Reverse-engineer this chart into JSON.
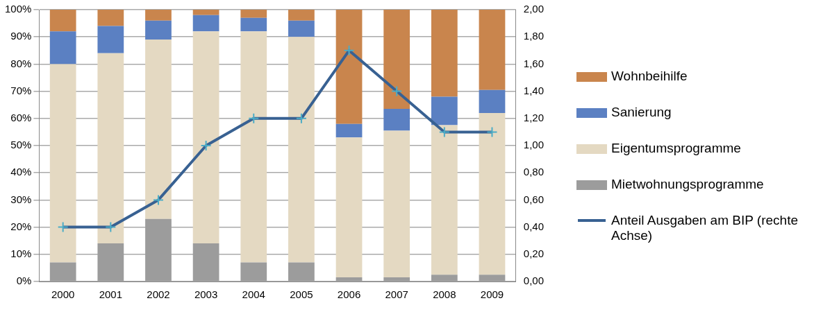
{
  "chart_data": {
    "type": "bar",
    "stacked": true,
    "categories": [
      "2000",
      "2001",
      "2002",
      "2003",
      "2004",
      "2005",
      "2006",
      "2007",
      "2008",
      "2009"
    ],
    "series": [
      {
        "name": "Mietwohnungsprogramme",
        "color": "#9c9c9c",
        "values": [
          7,
          14,
          23,
          14,
          7,
          7,
          1.5,
          1.5,
          2.5,
          2.5
        ]
      },
      {
        "name": "Eigentumsprogramme",
        "color": "#e4d9c2",
        "values": [
          73,
          70,
          66,
          78,
          85,
          83,
          51.5,
          54,
          55,
          59.5
        ]
      },
      {
        "name": "Sanierung",
        "color": "#5b80c2",
        "values": [
          12,
          10,
          7,
          6,
          5,
          6,
          5,
          8,
          10.5,
          8.5
        ]
      },
      {
        "name": "Wohnbeihilfe",
        "color": "#c9854d",
        "values": [
          8,
          6,
          4,
          2,
          3,
          4,
          42,
          36.5,
          32,
          29.5
        ]
      },
      {
        "name": "Anteil Ausgaben am BIP (rechte Achse)",
        "type": "line",
        "axis": "y2",
        "color": "#386192",
        "values": [
          0.4,
          0.4,
          0.6,
          1.0,
          1.2,
          1.2,
          1.7,
          1.4,
          1.1,
          1.1
        ]
      }
    ],
    "ylim": [
      0,
      100
    ],
    "yticks": [
      {
        "value": 0,
        "label": "0%"
      },
      {
        "value": 10,
        "label": "10%"
      },
      {
        "value": 20,
        "label": "20%"
      },
      {
        "value": 30,
        "label": "30%"
      },
      {
        "value": 40,
        "label": "40%"
      },
      {
        "value": 50,
        "label": "50%"
      },
      {
        "value": 60,
        "label": "60%"
      },
      {
        "value": 70,
        "label": "70%"
      },
      {
        "value": 80,
        "label": "80%"
      },
      {
        "value": 90,
        "label": "90%"
      },
      {
        "value": 100,
        "label": "100%"
      }
    ],
    "y2lim": [
      0,
      2
    ],
    "y2ticks": [
      {
        "value": 0,
        "label": "0,00"
      },
      {
        "value": 0.2,
        "label": "0,20"
      },
      {
        "value": 0.4,
        "label": "0,40"
      },
      {
        "value": 0.6,
        "label": "0,60"
      },
      {
        "value": 0.8,
        "label": "0,80"
      },
      {
        "value": 1,
        "label": "1,00"
      },
      {
        "value": 1.2,
        "label": "1,20"
      },
      {
        "value": 1.4,
        "label": "1,40"
      },
      {
        "value": 1.6,
        "label": "1,60"
      },
      {
        "value": 1.8,
        "label": "1,80"
      },
      {
        "value": 2,
        "label": "2,00"
      }
    ],
    "grid": "y",
    "legend": "right",
    "marker": "cross",
    "line_style": "solid"
  }
}
